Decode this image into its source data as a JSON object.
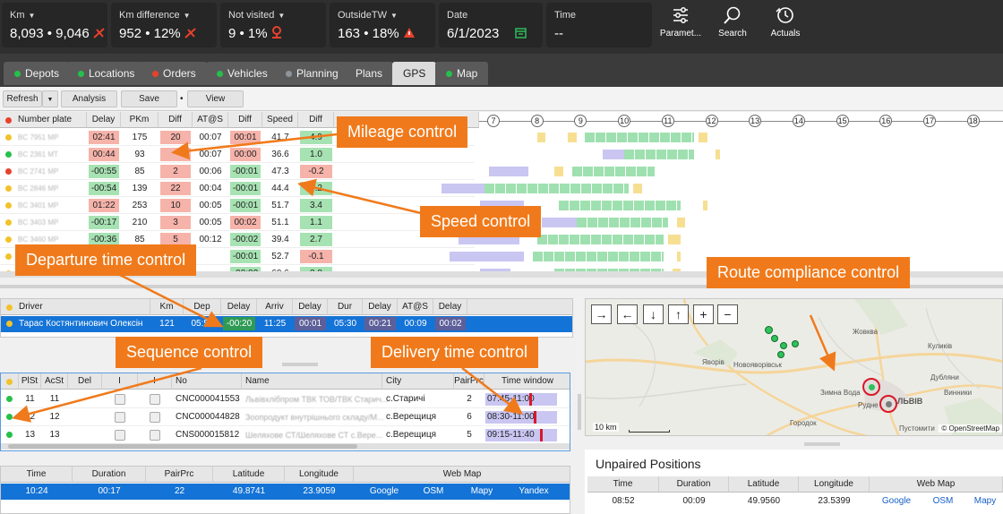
{
  "kpis": [
    {
      "label": "Km",
      "value": "8,093 • 9,046"
    },
    {
      "label": "Km difference",
      "value": "952 • 12%"
    },
    {
      "label": "Not visited",
      "value": "9 • 1%"
    },
    {
      "label": "OutsideTW",
      "value": "163 • 18%"
    },
    {
      "label": "Date",
      "value": "6/1/2023"
    },
    {
      "label": "Time",
      "value": "--"
    }
  ],
  "tools": {
    "params": "Paramet...",
    "search": "Search",
    "actuals": "Actuals"
  },
  "tabs": [
    "Depots",
    "Locations",
    "Orders",
    "Vehicles",
    "Planning",
    "Plans",
    "GPS",
    "Map"
  ],
  "tab_dot_colors": [
    "#26c04a",
    "#26c04a",
    "#e8412c",
    "#26c04a",
    "#8e959a",
    null,
    null,
    "#26c04a"
  ],
  "toolbar": {
    "refresh": "Refresh",
    "analysis": "Analysis",
    "save": "Save",
    "view": "View"
  },
  "vehicles": {
    "headers": [
      "Number plate",
      "Delay",
      "PKm",
      "Diff",
      "AT@S",
      "Diff",
      "Speed",
      "Diff"
    ],
    "hours": [
      "7",
      "8",
      "9",
      "10",
      "11",
      "12",
      "13",
      "14",
      "15",
      "16",
      "17",
      "18"
    ],
    "rows": [
      {
        "status": "#f2c22a",
        "plate": "BC 7951 MP",
        "delay": "02:41",
        "pkm": "175",
        "diff": "20",
        "ats": "00:07",
        "diff2": "00:01",
        "speed": "41.7",
        "diff3": "4.9"
      },
      {
        "status": "#26c04a",
        "plate": "BC 2361 MT",
        "delay": "00:44",
        "pkm": "93",
        "diff": "",
        "ats": "00:07",
        "diff2": "00:00",
        "speed": "36.6",
        "diff3": "1.0"
      },
      {
        "status": "#e8412c",
        "plate": "BC 2741 MP",
        "delay": "-00:55",
        "pkm": "85",
        "diff": "2",
        "ats": "00:06",
        "diff2": "-00:01",
        "speed": "47.3",
        "diff3": "-0.2"
      },
      {
        "status": "#f2c22a",
        "plate": "BC 2846 MP",
        "delay": "-00:54",
        "pkm": "139",
        "diff": "22",
        "ats": "00:04",
        "diff2": "-00:01",
        "speed": "44.4",
        "diff3": "5.2"
      },
      {
        "status": "#f2c22a",
        "plate": "BC 3401 MP",
        "delay": "01:22",
        "pkm": "253",
        "diff": "10",
        "ats": "00:05",
        "diff2": "-00:01",
        "speed": "51.7",
        "diff3": "3.4"
      },
      {
        "status": "#f2c22a",
        "plate": "BC 3403 MP",
        "delay": "-00:17",
        "pkm": "210",
        "diff": "3",
        "ats": "00:05",
        "diff2": "00:02",
        "speed": "51.1",
        "diff3": "1.1"
      },
      {
        "status": "#f2c22a",
        "plate": "BC 3460 MP",
        "delay": "-00:36",
        "pkm": "85",
        "diff": "5",
        "ats": "00:12",
        "diff2": "-00:02",
        "speed": "39.4",
        "diff3": "2.7"
      },
      {
        "status": "#f2c22a",
        "plate": "BC 3462 MP",
        "delay": "",
        "pkm": "",
        "diff": "",
        "ats": "",
        "diff2": "-00:01",
        "speed": "52.7",
        "diff3": "-0.1"
      },
      {
        "status": "#f2c22a",
        "plate": "BC 3465 MP",
        "delay": "",
        "pkm": "",
        "diff": "",
        "ats": "",
        "diff2": "-00:02",
        "speed": "60.6",
        "diff3": "3.8"
      }
    ]
  },
  "driver": {
    "headers": [
      "Driver",
      "Km",
      "Dep",
      "Delay",
      "Arriv",
      "Delay",
      "Dur",
      "Delay",
      "AT@S",
      "Delay"
    ],
    "row": {
      "name": "Тарас Костянтинович Олексін",
      "km": "121",
      "dep": "05:55",
      "delay": "-00:20",
      "arriv": "11:25",
      "delay2": "00:01",
      "dur": "05:30",
      "delay3": "00:21",
      "ats": "00:09",
      "delay4": "00:02"
    }
  },
  "orders": {
    "headers": [
      "PlSt",
      "AcSt",
      "Del",
      "I",
      "I",
      "No",
      "Name",
      "City",
      "PairPrc",
      "Time window"
    ],
    "rows": [
      {
        "plst": "11",
        "acst": "11",
        "no": "CNC000041553",
        "name": "Львівхлібпром ТВК ТОВ/ТВК Старич...",
        "city": "с.Старичі",
        "pair": "2",
        "tw": "07:45-11:00"
      },
      {
        "plst": "12",
        "acst": "12",
        "no": "CNC000044828",
        "name": "Зоопродукт внутрішнього складу/М...",
        "city": "с.Верещиця",
        "pair": "6",
        "tw": "08:30-11:00"
      },
      {
        "plst": "13",
        "acst": "13",
        "no": "CNS000015812",
        "name": "Шеляхове СТ/Шеляхове СТ с.Вере...",
        "city": "с.Верещиця",
        "pair": "5",
        "tw": "09:15-11:40"
      }
    ]
  },
  "positions": {
    "headers": [
      "Time",
      "Duration",
      "PairPrc",
      "Latitude",
      "Longitude",
      "Web Map"
    ],
    "row": {
      "time": "10:24",
      "duration": "00:17",
      "pair": "22",
      "lat": "49.8741",
      "lon": "23.9059"
    },
    "links": [
      "Google",
      "OSM",
      "Mapy",
      "Yandex"
    ]
  },
  "map": {
    "towns": [
      "Яворів",
      "Новояворівськ",
      "Жовква",
      "Куликів",
      "Дубляни",
      "Винники",
      "Рудне",
      "Городок",
      "Пустомити",
      "Зимна Вода",
      "ЛЬВІВ"
    ],
    "scale": "10 km",
    "attribution": "© OpenStreetMap"
  },
  "unpaired": {
    "title": "Unpaired Positions",
    "headers": [
      "Time",
      "Duration",
      "Latitude",
      "Longitude",
      "Web Map"
    ],
    "row": {
      "time": "08:52",
      "duration": "00:09",
      "lat": "49.9560",
      "lon": "23.5399"
    },
    "links": [
      "Google",
      "OSM",
      "Mapy"
    ]
  },
  "callouts": {
    "mileage": "Mileage control",
    "speed": "Speed control",
    "departure": "Departure time control",
    "route": "Route compliance control",
    "sequence": "Sequence control",
    "delivery": "Delivery time control"
  }
}
